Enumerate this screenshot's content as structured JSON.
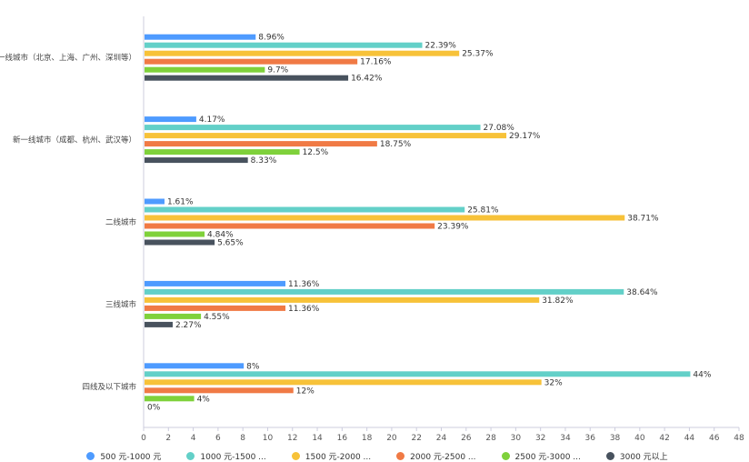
{
  "chart_data": {
    "type": "bar",
    "orientation": "horizontal",
    "categories": [
      "一线城市（北京、上海、广州、深圳等）",
      "新一线城市（成都、杭州、武汉等）",
      "二线城市",
      "三线城市",
      "四线及以下城市"
    ],
    "series": [
      {
        "name": "500 元-1000 元",
        "color": "#4e9bff",
        "values": [
          8.96,
          4.17,
          1.61,
          11.36,
          8
        ],
        "labels": [
          "8.96%",
          "4.17%",
          "1.61%",
          "11.36%",
          "8%"
        ]
      },
      {
        "name": "1000 元-1500 ...",
        "color": "#63d0c8",
        "values": [
          22.39,
          27.08,
          25.81,
          38.64,
          44
        ],
        "labels": [
          "22.39%",
          "27.08%",
          "25.81%",
          "38.64%",
          "44%"
        ]
      },
      {
        "name": "1500 元-2000 ...",
        "color": "#f7c239",
        "values": [
          25.37,
          29.17,
          38.71,
          31.82,
          32
        ],
        "labels": [
          "25.37%",
          "29.17%",
          "38.71%",
          "31.82%",
          "32%"
        ]
      },
      {
        "name": "2000 元-2500 ...",
        "color": "#f07a45",
        "values": [
          17.16,
          18.75,
          23.39,
          11.36,
          12
        ],
        "labels": [
          "17.16%",
          "18.75%",
          "23.39%",
          "11.36%",
          "12%"
        ]
      },
      {
        "name": "2500 元-3000 ...",
        "color": "#7fd13b",
        "values": [
          9.7,
          12.5,
          4.84,
          4.55,
          4
        ],
        "labels": [
          "9.7%",
          "12.5%",
          "4.84%",
          "4.55%",
          "4%"
        ]
      },
      {
        "name": "3000 元以上",
        "color": "#48525e",
        "values": [
          16.42,
          8.33,
          5.65,
          2.27,
          0
        ],
        "labels": [
          "16.42%",
          "8.33%",
          "5.65%",
          "2.27%",
          "0%"
        ]
      }
    ],
    "xlim": [
      0,
      48
    ],
    "xticks": [
      "0",
      "2",
      "4",
      "6",
      "8",
      "10",
      "12",
      "14",
      "16",
      "18",
      "20",
      "22",
      "24",
      "26",
      "28",
      "30",
      "32",
      "34",
      "36",
      "38",
      "40",
      "42",
      "44",
      "46",
      "48"
    ],
    "grid": false,
    "legend": "bottom"
  }
}
